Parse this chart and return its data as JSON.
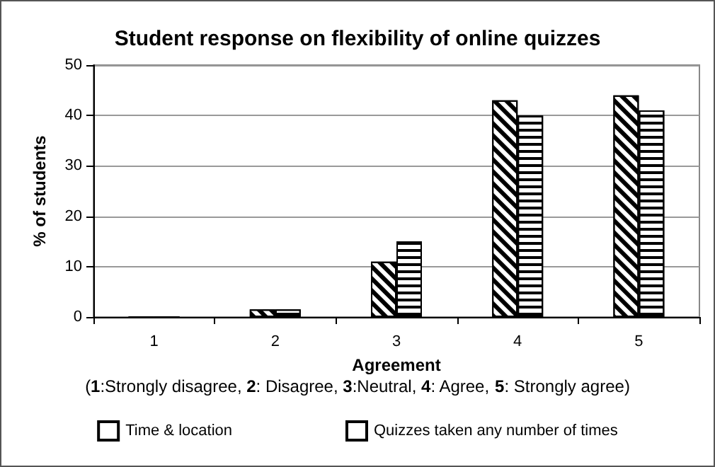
{
  "chart_data": {
    "type": "bar",
    "title": "Student response on flexibility of online quizzes",
    "xlabel": "Agreement",
    "ylabel": "% of students",
    "annotations": [
      "(1:Strongly disagree, 2: Disagree, 3:Neutral, 4: Agree, 5: Strongly agree)"
    ],
    "categories": [
      "1",
      "2",
      "3",
      "4",
      "5"
    ],
    "series": [
      {
        "name": "Time & location",
        "color": "#000000",
        "values": [
          0,
          1.5,
          11,
          43,
          44
        ]
      },
      {
        "name": "Quizzes taken any number of times",
        "color": "#000000",
        "values": [
          0,
          1.5,
          15,
          40,
          41
        ]
      }
    ],
    "ylim": [
      0,
      50
    ],
    "yticks": [
      0,
      10,
      20,
      30,
      40,
      50
    ],
    "grid": "y",
    "legend": "bottom"
  }
}
